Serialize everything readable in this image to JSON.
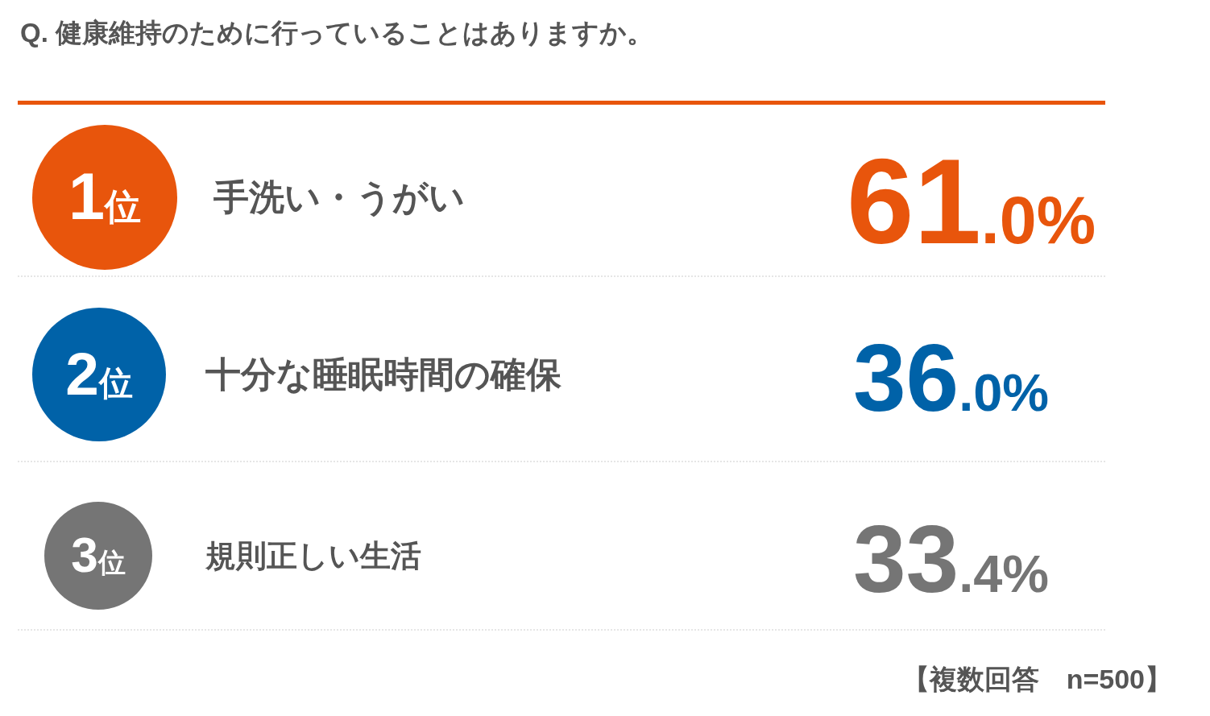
{
  "chart_data": {
    "type": "other",
    "title": "Q. 健康維持のために行っていることはありますか。",
    "categories": [
      "手洗い・うがい",
      "十分な睡眠時間の確保",
      "規則正しい生活"
    ],
    "values": [
      61.0,
      36.0,
      33.4
    ],
    "value_labels": [
      "61.0%",
      "36.0%",
      "33.4%"
    ],
    "colors": [
      "#e8550c",
      "#0062a8",
      "#757575"
    ],
    "annotations": [
      "1位",
      "2位",
      "3位",
      "【複数回答　n=500】"
    ]
  }
}
